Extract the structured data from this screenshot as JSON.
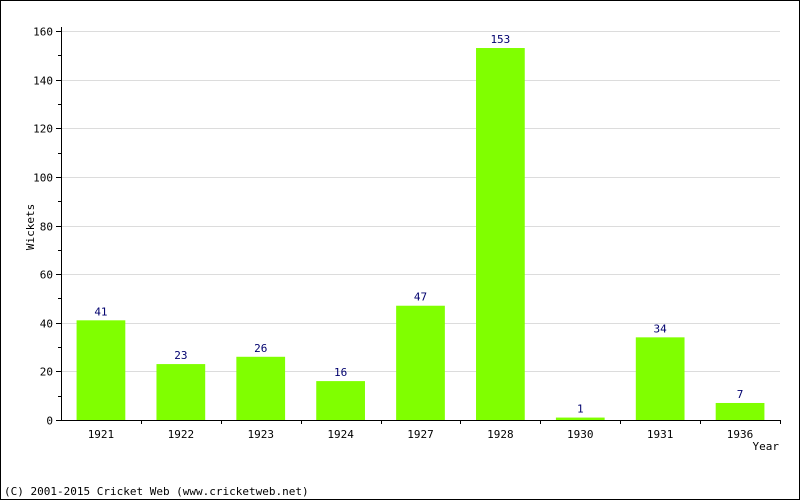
{
  "chart_data": {
    "type": "bar",
    "categories": [
      "1921",
      "1922",
      "1923",
      "1924",
      "1927",
      "1928",
      "1930",
      "1931",
      "1936"
    ],
    "values": [
      41,
      23,
      26,
      16,
      47,
      153,
      1,
      34,
      7
    ],
    "xlabel": "Year",
    "ylabel": "Wickets",
    "ylim": [
      0,
      160
    ],
    "yticks": [
      0,
      20,
      40,
      60,
      80,
      100,
      120,
      140,
      160
    ],
    "grid": true,
    "bar_color": "#80ff00",
    "label_color": "#00006e"
  },
  "footer": {
    "copyright": "(C) 2001-2015 Cricket Web (www.cricketweb.net)"
  }
}
